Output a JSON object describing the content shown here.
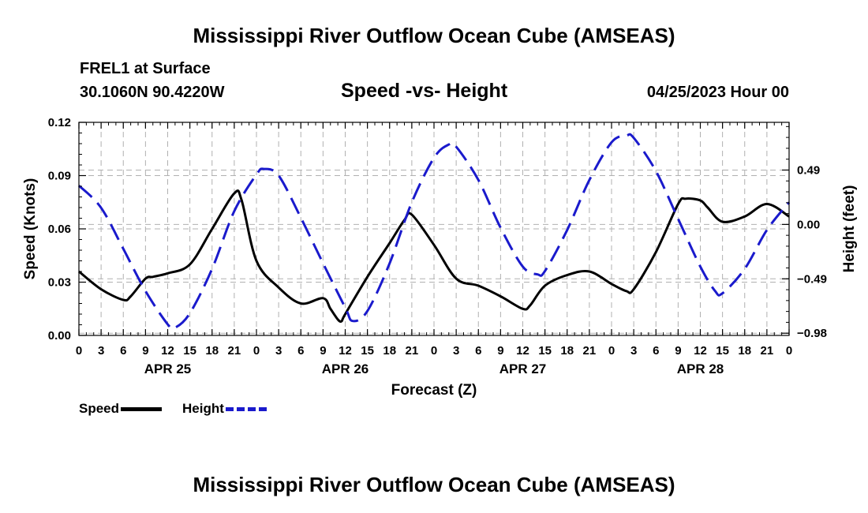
{
  "titles": {
    "main": "Mississippi River Outflow Ocean Cube (AMSEAS)",
    "footer": "Mississippi River Outflow Ocean Cube (AMSEAS)"
  },
  "header": {
    "station": "FREL1 at Surface",
    "coords": "30.1060N  90.4220W",
    "subtitle": "Speed -vs- Height",
    "datetime": "04/25/2023 Hour 00"
  },
  "legend": {
    "speed_label": "Speed",
    "height_label": "Height"
  },
  "colors": {
    "speed": "#000000",
    "height": "#1a1acc",
    "grid": "#b0b0b0"
  },
  "chart_data": {
    "type": "line",
    "xlabel": "Forecast (Z)",
    "ylabel": "Speed (Knots)",
    "y2label": "Height (feet)",
    "xlim": [
      0,
      96
    ],
    "ylim": [
      0,
      0.12
    ],
    "y2lim": [
      -1.0,
      0.92
    ],
    "yticks": [
      {
        "value": 0,
        "label": "0.00"
      },
      {
        "value": 0.03,
        "label": "0.03"
      },
      {
        "value": 0.06,
        "label": "0.06"
      },
      {
        "value": 0.09,
        "label": "0.09"
      },
      {
        "value": 0.12,
        "label": "0.12"
      }
    ],
    "y2ticks": [
      {
        "value": 0.49,
        "label": "0.49"
      },
      {
        "value": 0.0,
        "label": "0.00"
      },
      {
        "value": -0.49,
        "label": "−0.49"
      },
      {
        "value": -0.98,
        "label": "−0.98"
      }
    ],
    "xticks": [
      {
        "value": 0,
        "label": "0"
      },
      {
        "value": 3,
        "label": "3"
      },
      {
        "value": 6,
        "label": "6"
      },
      {
        "value": 9,
        "label": "9"
      },
      {
        "value": 12,
        "label": "12"
      },
      {
        "value": 15,
        "label": "15"
      },
      {
        "value": 18,
        "label": "18"
      },
      {
        "value": 21,
        "label": "21"
      },
      {
        "value": 24,
        "label": "0"
      },
      {
        "value": 27,
        "label": "3"
      },
      {
        "value": 30,
        "label": "6"
      },
      {
        "value": 33,
        "label": "9"
      },
      {
        "value": 36,
        "label": "12"
      },
      {
        "value": 39,
        "label": "15"
      },
      {
        "value": 42,
        "label": "18"
      },
      {
        "value": 45,
        "label": "21"
      },
      {
        "value": 48,
        "label": "0"
      },
      {
        "value": 51,
        "label": "3"
      },
      {
        "value": 54,
        "label": "6"
      },
      {
        "value": 57,
        "label": "9"
      },
      {
        "value": 60,
        "label": "12"
      },
      {
        "value": 63,
        "label": "15"
      },
      {
        "value": 66,
        "label": "18"
      },
      {
        "value": 69,
        "label": "21"
      },
      {
        "value": 72,
        "label": "0"
      },
      {
        "value": 75,
        "label": "3"
      },
      {
        "value": 78,
        "label": "6"
      },
      {
        "value": 81,
        "label": "9"
      },
      {
        "value": 84,
        "label": "12"
      },
      {
        "value": 87,
        "label": "15"
      },
      {
        "value": 90,
        "label": "18"
      },
      {
        "value": 93,
        "label": "21"
      },
      {
        "value": 96,
        "label": "0"
      }
    ],
    "day_labels": [
      {
        "value": 12,
        "label": "APR 25"
      },
      {
        "value": 36,
        "label": "APR 26"
      },
      {
        "value": 60,
        "label": "APR 27"
      },
      {
        "value": 84,
        "label": "APR 28"
      }
    ],
    "series": [
      {
        "name": "Speed",
        "axis": "left",
        "style": "solid",
        "x": [
          0,
          3,
          6,
          7,
          9,
          10,
          12,
          15,
          18,
          21,
          22,
          24,
          27,
          30,
          33,
          34,
          35,
          35.5,
          36,
          39,
          42,
          44,
          45,
          48,
          51,
          54,
          57,
          60,
          61,
          63,
          66,
          69,
          72,
          74,
          75,
          78,
          81,
          82,
          84,
          85,
          87,
          90,
          93,
          96
        ],
        "y": [
          0.036,
          0.026,
          0.02,
          0.022,
          0.032,
          0.033,
          0.035,
          0.04,
          0.06,
          0.08,
          0.076,
          0.042,
          0.027,
          0.018,
          0.021,
          0.015,
          0.009,
          0.008,
          0.012,
          0.033,
          0.052,
          0.065,
          0.068,
          0.051,
          0.032,
          0.028,
          0.022,
          0.015,
          0.017,
          0.028,
          0.034,
          0.036,
          0.029,
          0.025,
          0.026,
          0.047,
          0.074,
          0.077,
          0.076,
          0.072,
          0.064,
          0.067,
          0.074,
          0.067
        ]
      },
      {
        "name": "Height",
        "axis": "right",
        "style": "dashed",
        "x": [
          0,
          3,
          6,
          9,
          12,
          13,
          15,
          18,
          21,
          24,
          25,
          27,
          30,
          33,
          36,
          37,
          39,
          42,
          45,
          48,
          50,
          51,
          54,
          57,
          60,
          62,
          63,
          66,
          69,
          72,
          74,
          75,
          78,
          81,
          84,
          86,
          87,
          90,
          93,
          96
        ],
        "y": [
          0.35,
          0.15,
          -0.22,
          -0.6,
          -0.9,
          -0.93,
          -0.8,
          -0.4,
          0.12,
          0.45,
          0.5,
          0.44,
          0.06,
          -0.35,
          -0.75,
          -0.87,
          -0.78,
          -0.35,
          0.2,
          0.6,
          0.72,
          0.7,
          0.4,
          -0.03,
          -0.38,
          -0.45,
          -0.42,
          -0.05,
          0.4,
          0.74,
          0.8,
          0.78,
          0.48,
          0.05,
          -0.38,
          -0.6,
          -0.62,
          -0.4,
          -0.05,
          0.2
        ]
      }
    ]
  }
}
